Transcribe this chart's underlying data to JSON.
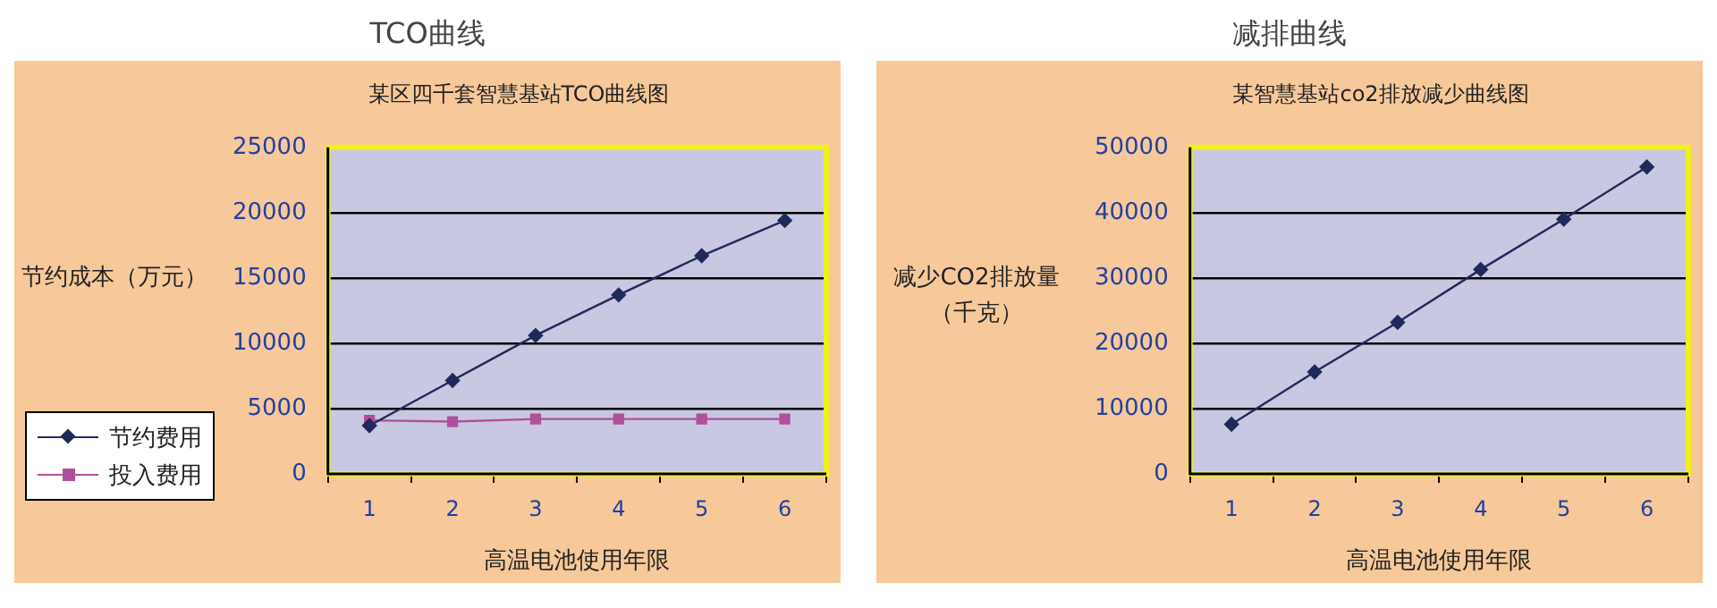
{
  "chart_data": [
    {
      "type": "line",
      "title": "TCO曲线",
      "subtitle": "某区四千套智慧基站TCO曲线图",
      "xlabel": "高温电池使用年限",
      "ylabel": "节约成本（万元）",
      "categories": [
        "1",
        "2",
        "3",
        "4",
        "5",
        "6"
      ],
      "series": [
        {
          "name": "节约费用",
          "color": "#1f2a5a",
          "marker": "diamond",
          "values": [
            3700,
            7150,
            10600,
            13700,
            16700,
            19400
          ]
        },
        {
          "name": "投入费用",
          "color": "#b0509a",
          "marker": "square",
          "values": [
            4100,
            4000,
            4200,
            4200,
            4200,
            4200
          ]
        }
      ],
      "ylim": [
        0,
        25000
      ],
      "yticks": [
        0,
        5000,
        10000,
        15000,
        20000,
        25000
      ],
      "grid": "y",
      "legend": "left"
    },
    {
      "type": "line",
      "title": "减排曲线",
      "subtitle": "某智慧基站co2排放减少曲线图",
      "xlabel": "高温电池使用年限",
      "ylabel": "减少CO2排放量（千克）",
      "categories": [
        "1",
        "2",
        "3",
        "4",
        "5",
        "6"
      ],
      "series": [
        {
          "color": "#1f2a5a",
          "marker": "diamond",
          "values": [
            7600,
            15600,
            23200,
            31300,
            39000,
            47000
          ]
        }
      ],
      "ylim": [
        0,
        50000
      ],
      "yticks": [
        0,
        10000,
        20000,
        30000,
        40000,
        50000
      ],
      "grid": "y",
      "legend": false
    }
  ]
}
